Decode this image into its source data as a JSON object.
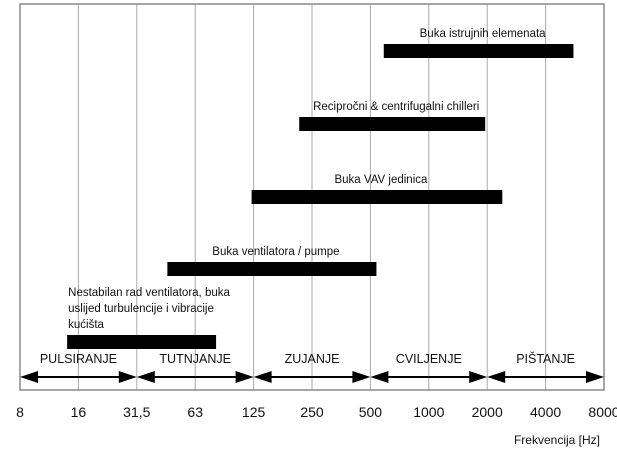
{
  "chart_data": {
    "type": "range-bar",
    "x_scale": "log2",
    "xlabel": "Frekvencija [Hz]",
    "xlim": [
      8,
      8000
    ],
    "x_ticks": [
      "8",
      "16",
      "31,5",
      "63",
      "125",
      "250",
      "500",
      "1000",
      "2000",
      "4000",
      "8000"
    ],
    "x_tick_values": [
      8,
      16,
      31.5,
      63,
      125,
      250,
      500,
      1000,
      2000,
      4000,
      8000
    ],
    "grid": true,
    "series": [
      {
        "label": [
          "Buka istrujnih elemenata"
        ],
        "start": 600,
        "end": 5700
      },
      {
        "label": [
          "Recipročni & centrifugalni chilleri"
        ],
        "start": 220,
        "end": 2000
      },
      {
        "label": [
          "Buka VAV jedinica"
        ],
        "start": 125,
        "end": 2450
      },
      {
        "label": [
          "Buka ventilatora / pumpe"
        ],
        "start": 46,
        "end": 550
      },
      {
        "label": [
          "Nestabilan rad ventilatora, buka",
          "uslijed turbulencije i vibracije",
          "kućišta"
        ],
        "start": 14,
        "end": 82
      }
    ],
    "bands": [
      {
        "label": "PULSIRANJE",
        "start": 8,
        "end": 31.5
      },
      {
        "label": "TUTNJANJE",
        "start": 31.5,
        "end": 125
      },
      {
        "label": "ZUJANJE",
        "start": 125,
        "end": 500
      },
      {
        "label": "CVILJENJE",
        "start": 500,
        "end": 2000
      },
      {
        "label": "PIŠTANJE",
        "start": 2000,
        "end": 8000
      }
    ],
    "colors": {
      "bar": "#000000",
      "grid": "#aaaaaa",
      "frame": "#888888"
    }
  }
}
